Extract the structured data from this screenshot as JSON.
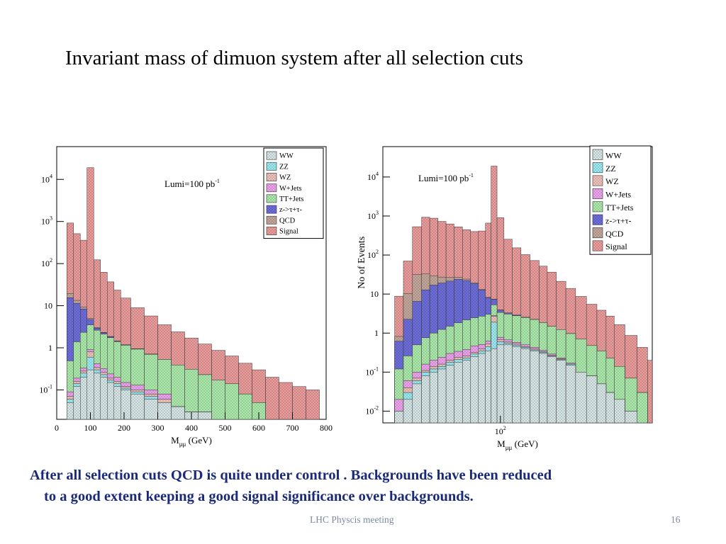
{
  "slide": {
    "title": "Invariant mass of dimuon system after all selection cuts",
    "body_line1": "After all selection cuts QCD is quite under control .  Backgrounds have been reduced",
    "body_line2": "to a good extent keeping a good signal significance over backgrounds.",
    "footer": "LHC Physcis meeting",
    "page_number": "16"
  },
  "colors": {
    "Signal": "#f2a0a0",
    "QCD": "#c8aca0",
    "z->τ+τ-": "#7070e0",
    "TT+Jets": "#b0f0b0",
    "W+Jets": "#f4a8f4",
    "WZ": "#f4c8c0",
    "ZZ": "#a0f0f8",
    "WW": "#dcecec",
    "body_text": "#1a2a7a",
    "footer_text": "#7a8aa0"
  },
  "chart_data": [
    {
      "type": "area",
      "stacked": true,
      "log_y": true,
      "xlabel": "M",
      "xlabel_sub": "μμ",
      "xlabel_unit": " (GeV)",
      "ylabel": "",
      "annotation": "Lumi=100 pb",
      "annotation_sup": "-1",
      "xlim": [
        0,
        800
      ],
      "ylim": [
        0.02,
        60000
      ],
      "x_ticks": [
        "0",
        "100",
        "200",
        "300",
        "400",
        "500",
        "600",
        "700",
        "800"
      ],
      "y_ticks": [
        {
          "v": 0.1,
          "base": "10",
          "sup": "-1"
        },
        {
          "v": 1,
          "base": "1",
          "sup": ""
        },
        {
          "v": 10,
          "base": "10",
          "sup": ""
        },
        {
          "v": 100,
          "base": "10",
          "sup": "2"
        },
        {
          "v": 1000,
          "base": "10",
          "sup": "3"
        },
        {
          "v": 10000,
          "base": "10",
          "sup": "4"
        }
      ],
      "legend_position": "top-right",
      "legend": [
        "WW",
        "ZZ",
        "WZ",
        "W+Jets",
        "TT+Jets",
        "z->τ+τ-",
        "QCD",
        "Signal"
      ],
      "x": [
        20,
        40,
        60,
        80,
        100,
        120,
        140,
        160,
        180,
        200,
        240,
        280,
        320,
        360,
        400,
        440,
        480,
        520,
        560,
        600,
        640,
        680,
        720,
        760
      ],
      "series": [
        {
          "name": "WW",
          "values": [
            0,
            0.05,
            0.12,
            0.2,
            0.3,
            0.25,
            0.2,
            0.15,
            0.12,
            0.1,
            0.08,
            0.06,
            0.05,
            0.04,
            0.03,
            0.03,
            0.02,
            0.02,
            0,
            0,
            0,
            0,
            0,
            0
          ]
        },
        {
          "name": "ZZ",
          "values": [
            0,
            0.01,
            0.02,
            0.05,
            0.3,
            0.05,
            0.03,
            0.02,
            0.02,
            0.01,
            0.01,
            0.01,
            0,
            0,
            0,
            0,
            0,
            0,
            0,
            0,
            0,
            0,
            0,
            0
          ]
        },
        {
          "name": "WZ",
          "values": [
            0,
            0.01,
            0.02,
            0.03,
            0.2,
            0.04,
            0.03,
            0.02,
            0.02,
            0.01,
            0.01,
            0.01,
            0.01,
            0,
            0,
            0,
            0,
            0,
            0,
            0,
            0,
            0,
            0,
            0
          ]
        },
        {
          "name": "W+Jets",
          "values": [
            0,
            0.02,
            0.03,
            0.05,
            0.1,
            0.08,
            0.06,
            0.05,
            0.04,
            0.03,
            0.03,
            0.02,
            0.02,
            0,
            0,
            0,
            0,
            0,
            0,
            0,
            0,
            0,
            0,
            0
          ]
        },
        {
          "name": "TT+Jets",
          "values": [
            0,
            0.4,
            1.2,
            2.0,
            2.6,
            2.2,
            1.8,
            1.5,
            1.2,
            1.0,
            0.8,
            0.6,
            0.45,
            0.35,
            0.28,
            0.2,
            0.15,
            0.12,
            0.08,
            0.05,
            0,
            0,
            0,
            0
          ]
        },
        {
          "name": "z->τ+τ-",
          "values": [
            0,
            15,
            10,
            6,
            1.2,
            0.3,
            0.15,
            0.1,
            0.05,
            0.03,
            0.02,
            0.01,
            0,
            0,
            0,
            0,
            0,
            0,
            0,
            0,
            0,
            0,
            0,
            0
          ]
        },
        {
          "name": "QCD",
          "values": [
            0,
            4,
            2,
            1,
            0.3,
            0.1,
            0.05,
            0.02,
            0.01,
            0,
            0,
            0,
            0,
            0,
            0,
            0,
            0,
            0,
            0,
            0,
            0,
            0,
            0,
            0
          ]
        },
        {
          "name": "Signal",
          "values": [
            0,
            900,
            500,
            350,
            19000,
            120,
            60,
            35,
            22,
            14,
            8,
            5,
            3,
            2,
            1.4,
            1,
            0.7,
            0.5,
            0.35,
            0.25,
            0.2,
            0.15,
            0.12,
            0.1
          ]
        }
      ]
    },
    {
      "type": "area",
      "stacked": true,
      "log_y": true,
      "log_x": true,
      "xlabel": "M",
      "xlabel_sub": "μμ",
      "xlabel_unit": " (GeV)",
      "ylabel": "No of  Events",
      "annotation": "Lumi=100 pb",
      "annotation_sup": "-1",
      "xlim": [
        20,
        800
      ],
      "ylim": [
        0.005,
        60000
      ],
      "x_ticks": [
        {
          "v": 100,
          "base": "10",
          "sup": "2"
        }
      ],
      "y_ticks": [
        {
          "v": 0.01,
          "base": "10",
          "sup": "-2"
        },
        {
          "v": 0.1,
          "base": "10",
          "sup": "-1"
        },
        {
          "v": 1,
          "base": "1",
          "sup": ""
        },
        {
          "v": 10,
          "base": "10",
          "sup": ""
        },
        {
          "v": 100,
          "base": "10",
          "sup": "2"
        },
        {
          "v": 1000,
          "base": "10",
          "sup": "3"
        },
        {
          "v": 10000,
          "base": "10",
          "sup": "4"
        }
      ],
      "legend_position": "top-right",
      "legend": [
        "WW",
        "ZZ",
        "WZ",
        "W+Jets",
        "TT+Jets",
        "z->τ+τ-",
        "QCD",
        "Signal"
      ],
      "x": [
        22,
        25,
        28,
        32,
        36,
        40,
        45,
        50,
        56,
        63,
        70,
        78,
        85,
        91,
        100,
        110,
        125,
        140,
        160,
        180,
        200,
        230,
        260,
        300,
        350,
        400,
        450,
        500,
        600,
        700,
        800
      ],
      "series": [
        {
          "name": "WW",
          "values": [
            0,
            0.01,
            0.02,
            0.05,
            0.08,
            0.1,
            0.12,
            0.15,
            0.18,
            0.2,
            0.25,
            0.3,
            0.35,
            0.4,
            0.5,
            0.5,
            0.45,
            0.4,
            0.35,
            0.3,
            0.25,
            0.2,
            0.15,
            0.1,
            0.08,
            0.05,
            0.03,
            0.02,
            0.01,
            0,
            0
          ]
        },
        {
          "name": "ZZ",
          "values": [
            0,
            0,
            0.01,
            0.01,
            0.02,
            0.02,
            0.02,
            0.03,
            0.03,
            0.03,
            0.04,
            0.05,
            0.1,
            1.5,
            0.1,
            0.05,
            0.04,
            0.03,
            0.02,
            0.02,
            0.01,
            0.01,
            0.01,
            0,
            0,
            0,
            0,
            0,
            0,
            0,
            0
          ]
        },
        {
          "name": "WZ",
          "values": [
            0,
            0,
            0.01,
            0.01,
            0.01,
            0.02,
            0.02,
            0.02,
            0.03,
            0.03,
            0.03,
            0.04,
            0.08,
            0.8,
            0.08,
            0.04,
            0.03,
            0.02,
            0.02,
            0.01,
            0.01,
            0.01,
            0,
            0,
            0,
            0,
            0,
            0,
            0,
            0,
            0
          ]
        },
        {
          "name": "W+Jets",
          "values": [
            0,
            0.01,
            0.02,
            0.03,
            0.05,
            0.06,
            0.08,
            0.1,
            0.1,
            0.12,
            0.15,
            0.12,
            0.1,
            0.1,
            0.1,
            0.08,
            0.06,
            0.05,
            0.04,
            0.03,
            0.02,
            0.01,
            0.01,
            0,
            0,
            0,
            0,
            0,
            0,
            0,
            0
          ]
        },
        {
          "name": "TT+Jets",
          "values": [
            0,
            0.1,
            0.2,
            0.4,
            0.6,
            0.8,
            1.0,
            1.2,
            1.5,
            1.8,
            2.0,
            2.2,
            2.4,
            2.5,
            2.6,
            2.4,
            2.2,
            2.0,
            1.8,
            1.5,
            1.2,
            1.0,
            0.8,
            0.6,
            0.4,
            0.3,
            0.2,
            0.12,
            0.06,
            0.03,
            0
          ]
        },
        {
          "name": "z->τ+τ-",
          "values": [
            0,
            0.5,
            2,
            6,
            12,
            16,
            18,
            20,
            22,
            20,
            16,
            10,
            5,
            2,
            0.5,
            0.2,
            0.1,
            0.05,
            0.02,
            0.01,
            0,
            0,
            0,
            0,
            0,
            0,
            0,
            0,
            0,
            0,
            0
          ]
        },
        {
          "name": "QCD",
          "values": [
            0,
            0.2,
            8,
            25,
            20,
            12,
            8,
            5,
            3,
            2,
            1,
            0.5,
            0.2,
            0.1,
            0.05,
            0.02,
            0.01,
            0,
            0,
            0,
            0,
            0,
            0,
            0,
            0,
            0,
            0,
            0,
            0,
            0,
            0
          ]
        },
        {
          "name": "Signal",
          "values": [
            0,
            8,
            60,
            500,
            900,
            850,
            700,
            600,
            500,
            420,
            380,
            400,
            650,
            19000,
            900,
            250,
            150,
            100,
            70,
            50,
            35,
            20,
            13,
            8,
            5,
            3.5,
            2.5,
            1.5,
            0.8,
            0.4,
            0.2
          ]
        }
      ]
    }
  ]
}
